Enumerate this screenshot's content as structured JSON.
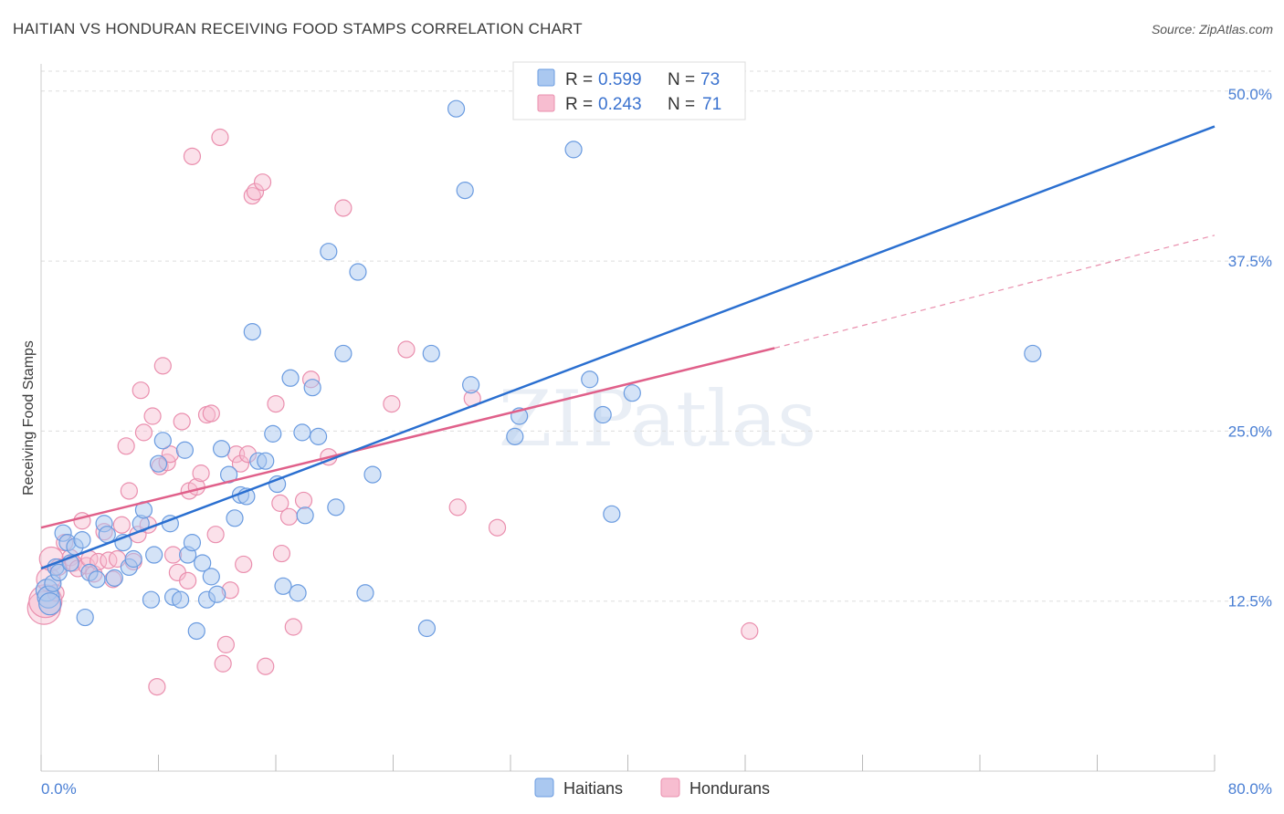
{
  "title": "HAITIAN VS HONDURAN RECEIVING FOOD STAMPS CORRELATION CHART",
  "source": "Source: ZipAtlas.com",
  "watermark": "ZIPatlas",
  "colors": {
    "haitians_fill": "#aac8f0",
    "haitians_stroke": "#6a9be0",
    "haitians_line": "#2a6fd0",
    "hondurans_fill": "#f7bdd0",
    "hondurans_stroke": "#ea8fae",
    "hondurans_line": "#e0608a",
    "tick_text": "#4a7fd4",
    "grid": "#dddddd"
  },
  "legend": {
    "haitians": {
      "r_label": "R = ",
      "r_value": "0.599",
      "n_label": "N = ",
      "n_value": "73"
    },
    "hondurans": {
      "r_label": "R = ",
      "r_value": "0.243",
      "n_label": "N = ",
      "n_value": "71"
    }
  },
  "chart_data": {
    "type": "scatter",
    "title": "HAITIAN VS HONDURAN RECEIVING FOOD STAMPS CORRELATION CHART",
    "xlabel": "",
    "ylabel": "Receiving Food Stamps",
    "xlim": [
      0,
      80
    ],
    "ylim": [
      0,
      52
    ],
    "x_tick_labels": [
      "0.0%",
      "80.0%"
    ],
    "y_ticks": [
      12.5,
      25.0,
      37.5,
      50.0
    ],
    "y_tick_labels": [
      "12.5%",
      "25.0%",
      "37.5%",
      "50.0%"
    ],
    "grid": true,
    "legend_position": "top-center",
    "series": [
      {
        "name": "Haitians",
        "regression": {
          "x": [
            0,
            80
          ],
          "y": [
            14.9,
            47.4
          ]
        },
        "points": [
          [
            0.4,
            13.3
          ],
          [
            0.5,
            12.8
          ],
          [
            0.6,
            12.3
          ],
          [
            0.8,
            13.8
          ],
          [
            1.0,
            15.0
          ],
          [
            1.2,
            14.6
          ],
          [
            1.5,
            17.5
          ],
          [
            1.8,
            16.8
          ],
          [
            2.0,
            15.3
          ],
          [
            2.3,
            16.5
          ],
          [
            2.8,
            17.0
          ],
          [
            3.0,
            11.3
          ],
          [
            3.3,
            14.6
          ],
          [
            3.8,
            14.1
          ],
          [
            4.3,
            18.2
          ],
          [
            4.5,
            17.4
          ],
          [
            5.0,
            14.2
          ],
          [
            5.6,
            16.8
          ],
          [
            6.0,
            15.0
          ],
          [
            6.3,
            15.6
          ],
          [
            6.8,
            18.2
          ],
          [
            7.0,
            19.2
          ],
          [
            7.5,
            12.6
          ],
          [
            7.7,
            15.9
          ],
          [
            8.0,
            22.6
          ],
          [
            8.3,
            24.3
          ],
          [
            8.8,
            18.2
          ],
          [
            9.0,
            12.8
          ],
          [
            9.5,
            12.6
          ],
          [
            9.8,
            23.6
          ],
          [
            10.0,
            15.9
          ],
          [
            10.3,
            16.8
          ],
          [
            10.6,
            10.3
          ],
          [
            11.0,
            15.3
          ],
          [
            11.3,
            12.6
          ],
          [
            11.6,
            14.3
          ],
          [
            12.0,
            13.0
          ],
          [
            12.3,
            23.7
          ],
          [
            12.8,
            21.8
          ],
          [
            13.2,
            18.6
          ],
          [
            13.6,
            20.3
          ],
          [
            14.0,
            20.2
          ],
          [
            14.4,
            32.3
          ],
          [
            14.8,
            22.8
          ],
          [
            15.3,
            22.8
          ],
          [
            15.8,
            24.8
          ],
          [
            16.1,
            21.1
          ],
          [
            16.5,
            13.6
          ],
          [
            17.0,
            28.9
          ],
          [
            17.5,
            13.1
          ],
          [
            17.8,
            24.9
          ],
          [
            18.0,
            18.8
          ],
          [
            18.5,
            28.2
          ],
          [
            18.9,
            24.6
          ],
          [
            19.6,
            38.2
          ],
          [
            20.1,
            19.4
          ],
          [
            20.6,
            30.7
          ],
          [
            21.6,
            36.7
          ],
          [
            22.1,
            13.1
          ],
          [
            22.6,
            21.8
          ],
          [
            26.3,
            10.5
          ],
          [
            26.6,
            30.7
          ],
          [
            28.3,
            48.7
          ],
          [
            28.9,
            42.7
          ],
          [
            29.3,
            28.4
          ],
          [
            32.3,
            24.6
          ],
          [
            32.6,
            26.1
          ],
          [
            36.3,
            45.7
          ],
          [
            37.4,
            28.8
          ],
          [
            38.3,
            26.2
          ],
          [
            38.9,
            18.9
          ],
          [
            40.3,
            27.8
          ],
          [
            67.6,
            30.7
          ]
        ]
      },
      {
        "name": "Hondurans",
        "regression": {
          "x": [
            0,
            50
          ],
          "y": [
            17.9,
            31.1
          ]
        },
        "regression_extension": {
          "x": [
            50,
            80
          ],
          "y": [
            31.1,
            39.4
          ]
        },
        "points": [
          [
            0.2,
            12.0
          ],
          [
            0.3,
            12.5
          ],
          [
            0.5,
            14.1
          ],
          [
            0.7,
            15.6
          ],
          [
            1.0,
            13.1
          ],
          [
            1.2,
            15.0
          ],
          [
            1.6,
            16.8
          ],
          [
            2.0,
            15.7
          ],
          [
            2.2,
            15.3
          ],
          [
            2.5,
            14.9
          ],
          [
            2.8,
            18.4
          ],
          [
            3.1,
            15.1
          ],
          [
            3.3,
            15.6
          ],
          [
            3.6,
            14.5
          ],
          [
            3.9,
            15.4
          ],
          [
            4.3,
            17.6
          ],
          [
            4.6,
            15.5
          ],
          [
            4.9,
            14.1
          ],
          [
            5.2,
            15.6
          ],
          [
            5.5,
            18.1
          ],
          [
            5.8,
            23.9
          ],
          [
            6.0,
            20.6
          ],
          [
            6.3,
            15.4
          ],
          [
            6.6,
            17.4
          ],
          [
            6.8,
            28.0
          ],
          [
            7.0,
            24.9
          ],
          [
            7.3,
            18.1
          ],
          [
            7.6,
            26.1
          ],
          [
            7.9,
            6.2
          ],
          [
            8.1,
            22.4
          ],
          [
            8.3,
            29.8
          ],
          [
            8.6,
            22.7
          ],
          [
            8.8,
            23.3
          ],
          [
            9.0,
            15.9
          ],
          [
            9.3,
            14.6
          ],
          [
            9.6,
            25.7
          ],
          [
            10.0,
            14.0
          ],
          [
            10.1,
            20.6
          ],
          [
            10.3,
            45.2
          ],
          [
            10.6,
            20.9
          ],
          [
            10.9,
            21.9
          ],
          [
            11.3,
            26.2
          ],
          [
            11.6,
            26.3
          ],
          [
            11.9,
            17.4
          ],
          [
            12.2,
            46.6
          ],
          [
            12.4,
            7.9
          ],
          [
            12.6,
            9.3
          ],
          [
            12.9,
            13.3
          ],
          [
            13.3,
            23.3
          ],
          [
            13.6,
            22.6
          ],
          [
            13.8,
            15.2
          ],
          [
            14.1,
            23.3
          ],
          [
            14.4,
            42.3
          ],
          [
            14.6,
            42.6
          ],
          [
            15.1,
            43.3
          ],
          [
            15.3,
            7.7
          ],
          [
            16.0,
            27.0
          ],
          [
            16.3,
            19.7
          ],
          [
            16.4,
            16.0
          ],
          [
            16.9,
            18.7
          ],
          [
            17.2,
            10.6
          ],
          [
            17.9,
            19.9
          ],
          [
            18.4,
            28.8
          ],
          [
            19.6,
            23.1
          ],
          [
            20.6,
            41.4
          ],
          [
            23.9,
            27.0
          ],
          [
            24.9,
            31.0
          ],
          [
            28.4,
            19.4
          ],
          [
            29.4,
            27.4
          ],
          [
            31.1,
            17.9
          ],
          [
            48.3,
            10.3
          ]
        ]
      }
    ]
  },
  "bottom_legend": {
    "haitians_label": "Haitians",
    "hondurans_label": "Hondurans"
  }
}
